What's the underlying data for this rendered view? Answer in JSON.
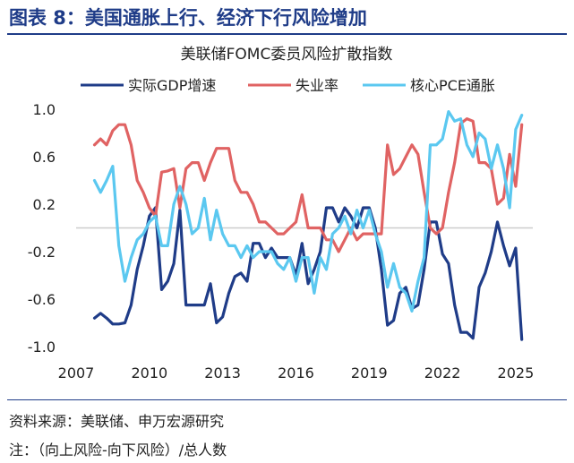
{
  "figure": {
    "title": "图表 8：美国通胀上行、经济下行风险增加",
    "source": "资料来源：美联储、申万宏源研究",
    "note": "注：（向上风险-向下风险）/总人数"
  },
  "chart_data": {
    "type": "line",
    "title": "美联储FOMC委员风险扩散指数",
    "xlabel": "",
    "ylabel": "",
    "xlim": [
      2007,
      2025.7
    ],
    "ylim": [
      -1.0,
      1.0
    ],
    "x_ticks": [
      2007,
      2010,
      2013,
      2016,
      2019,
      2022,
      2025
    ],
    "y_ticks": [
      1.0,
      0.6,
      0.2,
      -0.2,
      -0.6,
      -1.0
    ],
    "y_tick_labels": [
      "1.0",
      "0.6",
      "0.2",
      "-0.2",
      "-0.6",
      "-1.0"
    ],
    "grid": false,
    "legend_position": "top",
    "series": [
      {
        "name": "实际GDP增速",
        "color": "#1f3c88",
        "points": [
          [
            2007.75,
            -0.76
          ],
          [
            2008.0,
            -0.72
          ],
          [
            2008.25,
            -0.76
          ],
          [
            2008.5,
            -0.81
          ],
          [
            2008.75,
            -0.81
          ],
          [
            2009.0,
            -0.8
          ],
          [
            2009.25,
            -0.65
          ],
          [
            2009.5,
            -0.35
          ],
          [
            2009.75,
            -0.15
          ],
          [
            2010.0,
            0.1
          ],
          [
            2010.25,
            0.17
          ],
          [
            2010.5,
            -0.52
          ],
          [
            2010.75,
            -0.45
          ],
          [
            2011.0,
            -0.3
          ],
          [
            2011.25,
            0.15
          ],
          [
            2011.5,
            -0.65
          ],
          [
            2011.75,
            -0.65
          ],
          [
            2012.0,
            -0.65
          ],
          [
            2012.25,
            -0.65
          ],
          [
            2012.5,
            -0.47
          ],
          [
            2012.75,
            -0.8
          ],
          [
            2013.0,
            -0.75
          ],
          [
            2013.25,
            -0.55
          ],
          [
            2013.5,
            -0.41
          ],
          [
            2013.75,
            -0.38
          ],
          [
            2014.0,
            -0.45
          ],
          [
            2014.25,
            -0.13
          ],
          [
            2014.5,
            -0.13
          ],
          [
            2014.75,
            -0.25
          ],
          [
            2015.0,
            -0.17
          ],
          [
            2015.25,
            -0.25
          ],
          [
            2015.5,
            -0.25
          ],
          [
            2015.75,
            -0.25
          ],
          [
            2016.0,
            -0.4
          ],
          [
            2016.25,
            -0.13
          ],
          [
            2016.5,
            -0.47
          ],
          [
            2016.75,
            -0.35
          ],
          [
            2017.0,
            -0.2
          ],
          [
            2017.25,
            0.17
          ],
          [
            2017.5,
            0.17
          ],
          [
            2017.75,
            0.05
          ],
          [
            2018.0,
            0.17
          ],
          [
            2018.25,
            0.1
          ],
          [
            2018.5,
            0.0
          ],
          [
            2018.75,
            0.17
          ],
          [
            2019.0,
            0.17
          ],
          [
            2019.25,
            0.0
          ],
          [
            2019.5,
            -0.35
          ],
          [
            2019.75,
            -0.82
          ],
          [
            2020.0,
            -0.78
          ],
          [
            2020.25,
            -0.55
          ],
          [
            2020.5,
            -0.5
          ],
          [
            2020.75,
            -0.68
          ],
          [
            2021.0,
            -0.65
          ],
          [
            2021.25,
            -0.35
          ],
          [
            2021.5,
            0.05
          ],
          [
            2021.75,
            0.05
          ],
          [
            2022.0,
            -0.22
          ],
          [
            2022.25,
            -0.3
          ],
          [
            2022.5,
            -0.65
          ],
          [
            2022.75,
            -0.88
          ],
          [
            2023.0,
            -0.88
          ],
          [
            2023.25,
            -0.93
          ],
          [
            2023.5,
            -0.5
          ],
          [
            2023.75,
            -0.38
          ],
          [
            2024.0,
            -0.2
          ],
          [
            2024.25,
            0.05
          ],
          [
            2024.5,
            -0.15
          ],
          [
            2024.75,
            -0.32
          ],
          [
            2025.0,
            -0.17
          ],
          [
            2025.25,
            -0.94
          ]
        ]
      },
      {
        "name": "失业率",
        "color": "#e06363",
        "points": [
          [
            2007.75,
            0.7
          ],
          [
            2008.0,
            0.75
          ],
          [
            2008.25,
            0.7
          ],
          [
            2008.5,
            0.82
          ],
          [
            2008.75,
            0.87
          ],
          [
            2009.0,
            0.87
          ],
          [
            2009.25,
            0.7
          ],
          [
            2009.5,
            0.4
          ],
          [
            2009.75,
            0.3
          ],
          [
            2010.0,
            0.17
          ],
          [
            2010.25,
            0.1
          ],
          [
            2010.5,
            0.47
          ],
          [
            2010.75,
            0.48
          ],
          [
            2011.0,
            0.5
          ],
          [
            2011.25,
            0.17
          ],
          [
            2011.5,
            0.5
          ],
          [
            2011.75,
            0.55
          ],
          [
            2012.0,
            0.55
          ],
          [
            2012.25,
            0.4
          ],
          [
            2012.5,
            0.55
          ],
          [
            2012.75,
            0.67
          ],
          [
            2013.0,
            0.67
          ],
          [
            2013.25,
            0.67
          ],
          [
            2013.5,
            0.4
          ],
          [
            2013.75,
            0.3
          ],
          [
            2014.0,
            0.3
          ],
          [
            2014.25,
            0.2
          ],
          [
            2014.5,
            0.05
          ],
          [
            2014.75,
            0.05
          ],
          [
            2015.0,
            0.0
          ],
          [
            2015.25,
            -0.05
          ],
          [
            2015.5,
            -0.05
          ],
          [
            2015.75,
            0.0
          ],
          [
            2016.0,
            0.05
          ],
          [
            2016.25,
            0.28
          ],
          [
            2016.5,
            0.0
          ],
          [
            2016.75,
            0.0
          ],
          [
            2017.0,
            0.0
          ],
          [
            2017.25,
            -0.1
          ],
          [
            2017.5,
            -0.1
          ],
          [
            2017.75,
            -0.2
          ],
          [
            2018.0,
            -0.1
          ],
          [
            2018.25,
            0.0
          ],
          [
            2018.5,
            -0.1
          ],
          [
            2018.75,
            -0.05
          ],
          [
            2019.0,
            -0.05
          ],
          [
            2019.25,
            -0.05
          ],
          [
            2019.5,
            -0.05
          ],
          [
            2019.75,
            0.7
          ],
          [
            2020.0,
            0.45
          ],
          [
            2020.25,
            0.5
          ],
          [
            2020.5,
            0.6
          ],
          [
            2020.75,
            0.7
          ],
          [
            2021.0,
            0.62
          ],
          [
            2021.25,
            0.3
          ],
          [
            2021.5,
            0.0
          ],
          [
            2021.75,
            -0.05
          ],
          [
            2022.0,
            0.0
          ],
          [
            2022.25,
            0.3
          ],
          [
            2022.5,
            0.55
          ],
          [
            2022.75,
            0.88
          ],
          [
            2023.0,
            0.92
          ],
          [
            2023.25,
            0.9
          ],
          [
            2023.5,
            0.55
          ],
          [
            2023.75,
            0.55
          ],
          [
            2024.0,
            0.5
          ],
          [
            2024.25,
            0.2
          ],
          [
            2024.5,
            0.25
          ],
          [
            2024.75,
            0.62
          ],
          [
            2025.0,
            0.35
          ],
          [
            2025.25,
            0.87
          ]
        ]
      },
      {
        "name": "核心PCE通胀",
        "color": "#5bc8f0",
        "points": [
          [
            2007.75,
            0.4
          ],
          [
            2008.0,
            0.3
          ],
          [
            2008.25,
            0.4
          ],
          [
            2008.5,
            0.52
          ],
          [
            2008.75,
            -0.15
          ],
          [
            2009.0,
            -0.45
          ],
          [
            2009.25,
            -0.25
          ],
          [
            2009.5,
            -0.1
          ],
          [
            2009.75,
            -0.05
          ],
          [
            2010.0,
            0.05
          ],
          [
            2010.25,
            0.1
          ],
          [
            2010.5,
            -0.15
          ],
          [
            2010.75,
            -0.15
          ],
          [
            2011.0,
            0.2
          ],
          [
            2011.25,
            0.35
          ],
          [
            2011.5,
            0.2
          ],
          [
            2011.75,
            -0.05
          ],
          [
            2012.0,
            0.0
          ],
          [
            2012.25,
            0.25
          ],
          [
            2012.5,
            -0.1
          ],
          [
            2012.75,
            0.15
          ],
          [
            2013.0,
            -0.05
          ],
          [
            2013.25,
            -0.15
          ],
          [
            2013.5,
            -0.15
          ],
          [
            2013.75,
            -0.25
          ],
          [
            2014.0,
            -0.15
          ],
          [
            2014.25,
            -0.25
          ],
          [
            2014.5,
            -0.2
          ],
          [
            2014.75,
            -0.2
          ],
          [
            2015.0,
            -0.2
          ],
          [
            2015.25,
            -0.3
          ],
          [
            2015.5,
            -0.35
          ],
          [
            2015.75,
            -0.25
          ],
          [
            2016.0,
            -0.45
          ],
          [
            2016.25,
            -0.25
          ],
          [
            2016.5,
            -0.25
          ],
          [
            2016.75,
            -0.55
          ],
          [
            2017.0,
            -0.25
          ],
          [
            2017.25,
            -0.35
          ],
          [
            2017.5,
            -0.05
          ],
          [
            2017.75,
            0.0
          ],
          [
            2018.0,
            0.1
          ],
          [
            2018.25,
            -0.05
          ],
          [
            2018.5,
            0.15
          ],
          [
            2018.75,
            0.0
          ],
          [
            2019.0,
            0.15
          ],
          [
            2019.25,
            -0.05
          ],
          [
            2019.5,
            -0.2
          ],
          [
            2019.75,
            -0.5
          ],
          [
            2020.0,
            -0.3
          ],
          [
            2020.25,
            -0.5
          ],
          [
            2020.5,
            -0.55
          ],
          [
            2020.75,
            -0.7
          ],
          [
            2021.0,
            -0.45
          ],
          [
            2021.25,
            -0.25
          ],
          [
            2021.5,
            0.7
          ],
          [
            2021.75,
            0.7
          ],
          [
            2022.0,
            0.75
          ],
          [
            2022.25,
            0.98
          ],
          [
            2022.5,
            0.9
          ],
          [
            2022.75,
            0.92
          ],
          [
            2023.0,
            0.7
          ],
          [
            2023.25,
            0.6
          ],
          [
            2023.5,
            0.8
          ],
          [
            2023.75,
            0.75
          ],
          [
            2024.0,
            0.5
          ],
          [
            2024.25,
            0.7
          ],
          [
            2024.5,
            0.5
          ],
          [
            2024.75,
            0.17
          ],
          [
            2025.0,
            0.83
          ],
          [
            2025.25,
            0.95
          ]
        ]
      }
    ]
  }
}
